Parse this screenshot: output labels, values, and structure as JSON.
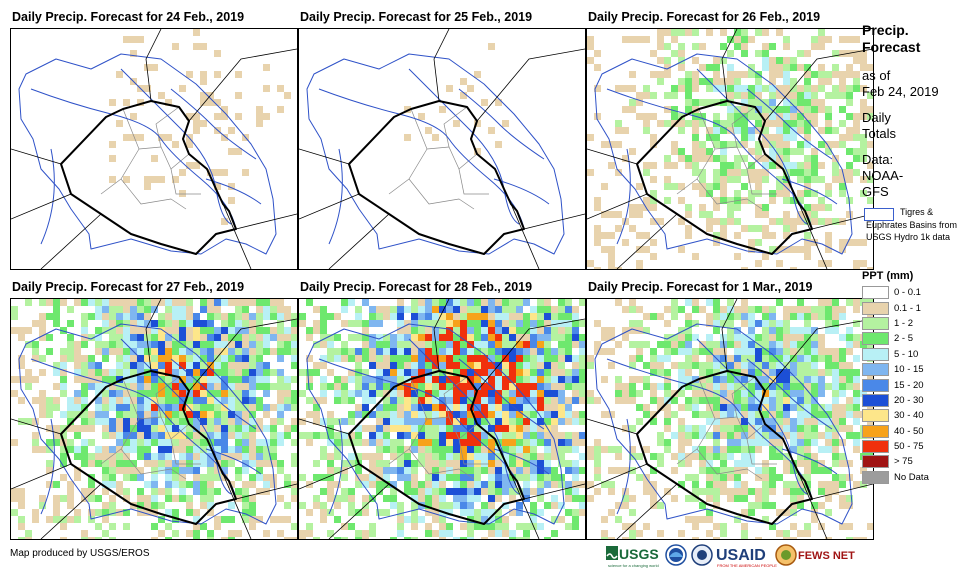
{
  "panels": [
    {
      "title": "Daily Precip. Forecast for 24 Feb., 2019",
      "intensity": 0.15
    },
    {
      "title": "Daily Precip. Forecast for 25 Feb., 2019",
      "intensity": 0.1
    },
    {
      "title": "Daily Precip. Forecast for 26 Feb., 2019",
      "intensity": 0.45
    },
    {
      "title": "Daily Precip. Forecast for 27 Feb., 2019",
      "intensity": 0.7
    },
    {
      "title": "Daily Precip. Forecast for 28 Feb., 2019",
      "intensity": 0.85
    },
    {
      "title": "Daily Precip. Forecast for 1 Mar., 2019",
      "intensity": 0.6
    }
  ],
  "legend": {
    "title_line1": "Precip.",
    "title_line2": "Forecast",
    "asof_line1": "as of",
    "asof_line2": "Feb 24, 2019",
    "daily_line1": "Daily",
    "daily_line2": "Totals",
    "data_line1": "Data:",
    "data_line2": "NOAA-",
    "data_line3": "GFS",
    "basin_label": "Tigres & Euphrates Basins from USGS Hydro 1k data",
    "ppt_title": "PPT (mm)",
    "ppt_classes": [
      {
        "label": "0 - 0.1",
        "color": "#ffffff"
      },
      {
        "label": "0.1 - 1",
        "color": "#e8d3ad"
      },
      {
        "label": "1 - 2",
        "color": "#b4f2a0"
      },
      {
        "label": "2 - 5",
        "color": "#6ee86e"
      },
      {
        "label": "5 - 10",
        "color": "#b8f0f5"
      },
      {
        "label": "10 - 15",
        "color": "#7fb6f0"
      },
      {
        "label": "15 - 20",
        "color": "#4a88e8"
      },
      {
        "label": "20 - 30",
        "color": "#1c4fd6"
      },
      {
        "label": "30 - 40",
        "color": "#fde68a"
      },
      {
        "label": "40 - 50",
        "color": "#f7a21a"
      },
      {
        "label": "50 - 75",
        "color": "#f0300c"
      },
      {
        "label": "> 75",
        "color": "#a01414"
      },
      {
        "label": "No Data",
        "color": "#9c9c9c"
      }
    ]
  },
  "footer": {
    "credit": "Map produced by USGS/EROS",
    "usgs": "USGS",
    "usgs_tagline": "science for a changing world",
    "usaid": "USAID",
    "usaid_tagline": "FROM THE AMERICAN PEOPLE",
    "fewsnet": "FEWS NET"
  }
}
